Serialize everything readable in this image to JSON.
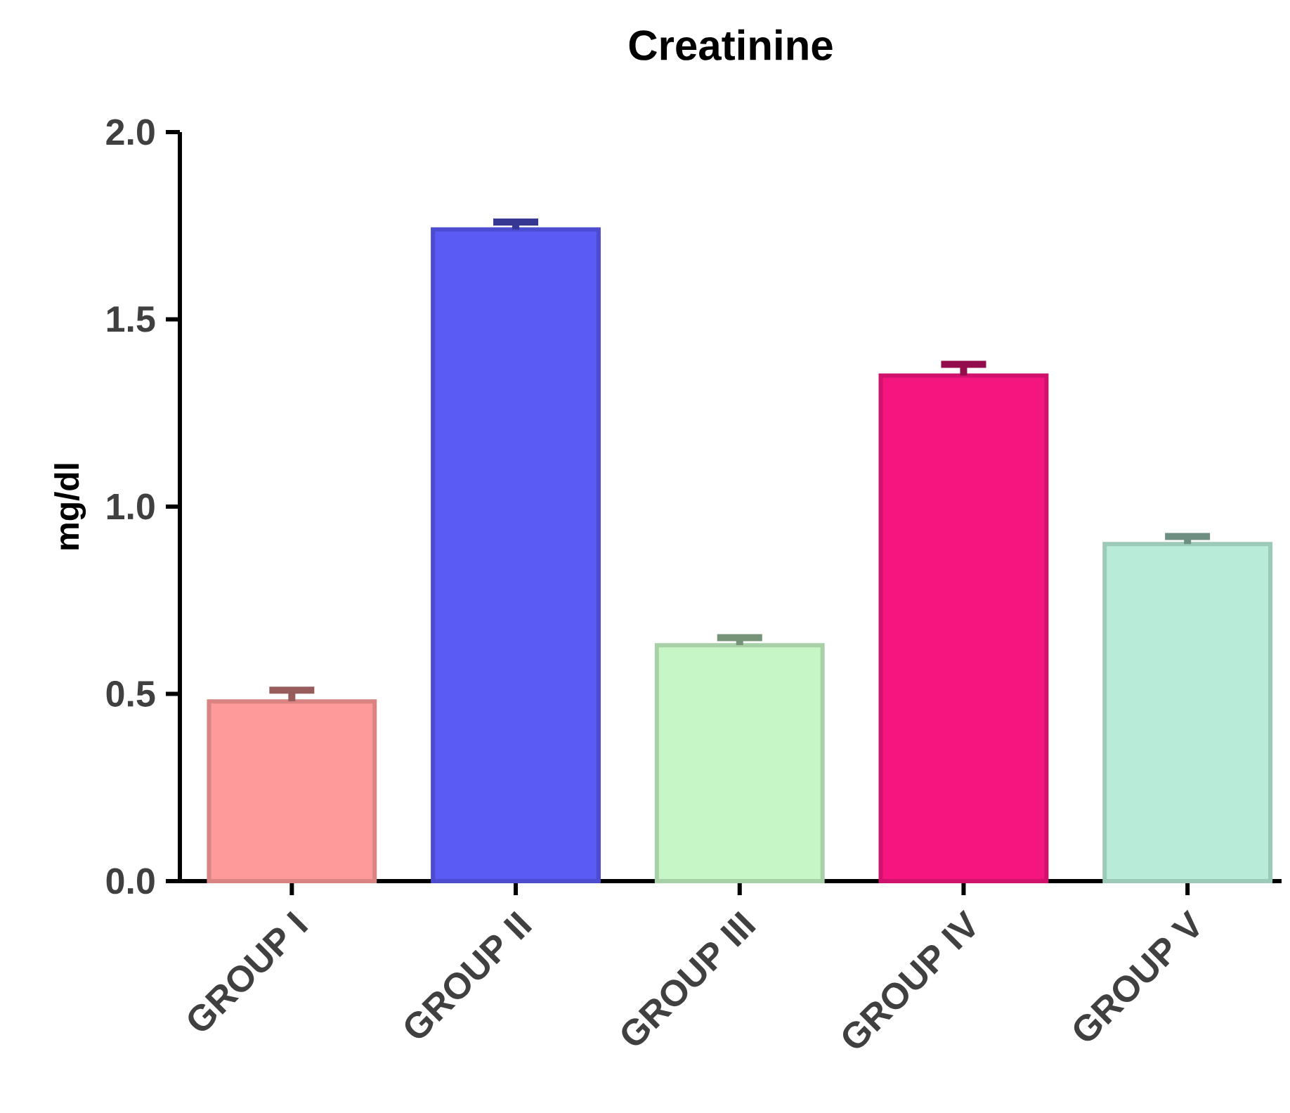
{
  "chart_data": {
    "type": "bar",
    "title": "Creatinine",
    "ylabel": "mg/dl",
    "categories": [
      "GROUP I",
      "GROUP II",
      "GROUP III",
      "GROUP IV",
      "GROUP V"
    ],
    "values": [
      0.48,
      1.74,
      0.63,
      1.35,
      0.9
    ],
    "errors": [
      0.03,
      0.02,
      0.02,
      0.03,
      0.02
    ],
    "colors": [
      "#ff9a9a",
      "#5a5af5",
      "#c6f5c6",
      "#f5157f",
      "#b8ecd8"
    ],
    "ylim": [
      0,
      2.0
    ],
    "yticks": [
      {
        "value": 0,
        "label": "0.0"
      },
      0.5,
      {
        "value": 1,
        "label": "1.0"
      },
      1.5,
      {
        "value": 2,
        "label": "2.0"
      }
    ],
    "grid": false
  }
}
